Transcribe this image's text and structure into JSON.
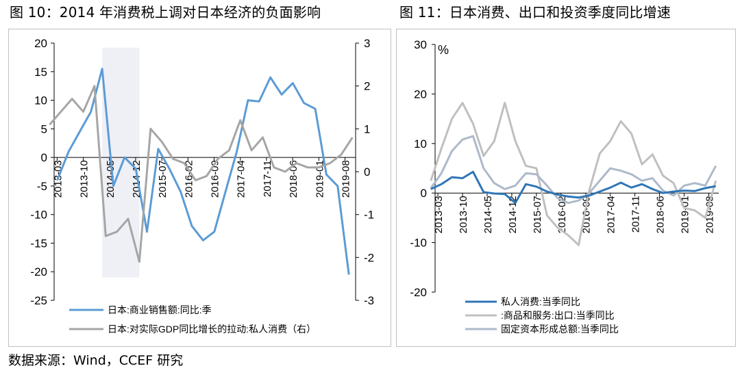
{
  "title_left": "图 10：2014 年消费税上调对日本经济的负面影响",
  "title_right": "图 11：日本消费、出口和投资季度同比增速",
  "source": "数据来源：Wind，CCEF 研究",
  "chart_data": [
    {
      "type": "line",
      "x_ticks": [
        "2013-03",
        "2013-10",
        "2014-05",
        "2014-12",
        "2015-07",
        "2016-02",
        "2016-09",
        "2017-04",
        "2017-11",
        "2018-06",
        "2019-01",
        "2019-08"
      ],
      "y_left_ticks": [
        "20",
        "15",
        "10",
        "5",
        "0",
        "-5",
        "-10",
        "-15",
        "-20",
        "-25"
      ],
      "y_right_ticks": [
        "3",
        "2",
        "1",
        "0",
        "-1",
        "-2",
        "-3"
      ],
      "ylim_left": [
        -25,
        20
      ],
      "ylim_right": [
        -3,
        3
      ],
      "shaded_x": [
        2014.17,
        2015.0
      ],
      "series": [
        {
          "name": "日本:商业销售额:同比:季",
          "axis": "left",
          "color": "#5b9bd5",
          "x": [
            2013.17,
            2013.42,
            2013.67,
            2013.92,
            2014.17,
            2014.42,
            2014.67,
            2014.92,
            2015.17,
            2015.42,
            2015.67,
            2015.92,
            2016.17,
            2016.42,
            2016.67,
            2016.92,
            2017.17,
            2017.42,
            2017.67,
            2017.92,
            2018.17,
            2018.42,
            2018.67,
            2018.92,
            2019.17,
            2019.42,
            2019.67
          ],
          "values": [
            -4,
            1,
            4.5,
            8,
            15.5,
            -5,
            0,
            -2,
            -13,
            1.5,
            -2,
            -6,
            -12,
            -14.5,
            -13,
            -6,
            1,
            10,
            9.8,
            14,
            11,
            13,
            9.5,
            8.5,
            -3,
            -5,
            -20.5
          ]
        },
        {
          "name": "日本:对实际GDP同比增长的拉动:私人消费（右）",
          "axis": "right",
          "color": "#a5a5a5",
          "x": [
            2013.0,
            2013.25,
            2013.5,
            2013.75,
            2014.0,
            2014.25,
            2014.5,
            2014.75,
            2015.0,
            2015.25,
            2015.5,
            2015.75,
            2016.0,
            2016.25,
            2016.5,
            2016.75,
            2017.0,
            2017.25,
            2017.5,
            2017.75,
            2018.0,
            2018.25,
            2018.5,
            2018.75,
            2019.0,
            2019.25,
            2019.5,
            2019.75
          ],
          "values": [
            1.1,
            1.4,
            1.7,
            1.4,
            2.0,
            -1.5,
            -1.4,
            -1.1,
            -2.1,
            1.0,
            0.7,
            0.3,
            0.2,
            -0.2,
            -0.1,
            0.3,
            0.5,
            1.2,
            0.5,
            0.8,
            0.1,
            0.0,
            0.2,
            0.1,
            0.1,
            0.2,
            0.4,
            0.8
          ]
        }
      ]
    },
    {
      "type": "line",
      "unit": "%",
      "x_ticks": [
        "2013-03",
        "2013-10",
        "2014-05",
        "2014-12",
        "2015-07",
        "2016-02",
        "2016-09",
        "2017-04",
        "2017-11",
        "2018-06",
        "2019-01",
        "2019-08"
      ],
      "y_ticks": [
        "30",
        "20",
        "10",
        "0",
        "-10",
        "-20"
      ],
      "ylim": [
        -20,
        30
      ],
      "series": [
        {
          "name": "私人消费:当季同比",
          "color": "#2e75b6",
          "x": [
            2013.0,
            2013.25,
            2013.5,
            2013.75,
            2014.0,
            2014.25,
            2014.5,
            2014.75,
            2015.0,
            2015.25,
            2015.5,
            2015.75,
            2016.0,
            2016.25,
            2016.5,
            2016.75,
            2017.0,
            2017.25,
            2017.5,
            2017.75,
            2018.0,
            2018.25,
            2018.5,
            2018.75,
            2019.0,
            2019.25,
            2019.5,
            2019.75
          ],
          "values": [
            0.8,
            1.8,
            3.2,
            3.0,
            4.3,
            0.2,
            -0.1,
            -0.2,
            -2.0,
            1.8,
            1.3,
            0.3,
            -0.3,
            -0.7,
            -0.9,
            -0.5,
            0.3,
            1.1,
            2.1,
            1.1,
            1.8,
            0.8,
            0.0,
            0.3,
            0.5,
            0.4,
            1.0,
            1.4
          ]
        },
        {
          "name": ":商品和服务:出口:当季同比",
          "color": "#bfbfbf",
          "x": [
            2013.0,
            2013.25,
            2013.5,
            2013.75,
            2014.0,
            2014.25,
            2014.5,
            2014.75,
            2015.0,
            2015.25,
            2015.5,
            2015.75,
            2016.0,
            2016.25,
            2016.5,
            2016.75,
            2017.0,
            2017.25,
            2017.5,
            2017.75,
            2018.0,
            2018.25,
            2018.5,
            2018.75,
            2019.0,
            2019.25,
            2019.5,
            2019.75
          ],
          "values": [
            2.5,
            9.0,
            15.0,
            18.2,
            14.0,
            7.5,
            10.5,
            18.2,
            10.5,
            5.5,
            5.0,
            -4.5,
            -7.0,
            -8.5,
            -10.5,
            0.5,
            8.0,
            10.5,
            14.5,
            12.0,
            5.8,
            7.8,
            3.5,
            2.0,
            -3.0,
            -3.5,
            -5.0,
            2.5
          ]
        },
        {
          "name": "固定资本形成总额:当季同比",
          "color": "#adb9ca",
          "x": [
            2013.0,
            2013.25,
            2013.5,
            2013.75,
            2014.0,
            2014.25,
            2014.5,
            2014.75,
            2015.0,
            2015.25,
            2015.5,
            2015.75,
            2016.0,
            2016.25,
            2016.5,
            2016.75,
            2017.0,
            2017.25,
            2017.5,
            2017.75,
            2018.0,
            2018.25,
            2018.5,
            2018.75,
            2019.0,
            2019.25,
            2019.5,
            2019.75
          ],
          "values": [
            1.0,
            4.0,
            8.5,
            10.8,
            11.5,
            5.0,
            2.0,
            0.8,
            1.5,
            4.0,
            3.8,
            1.5,
            -1.0,
            -2.0,
            -1.5,
            0.0,
            2.5,
            5.0,
            4.5,
            3.8,
            2.5,
            3.0,
            0.5,
            -0.5,
            1.5,
            2.0,
            1.5,
            5.5
          ]
        }
      ]
    }
  ]
}
